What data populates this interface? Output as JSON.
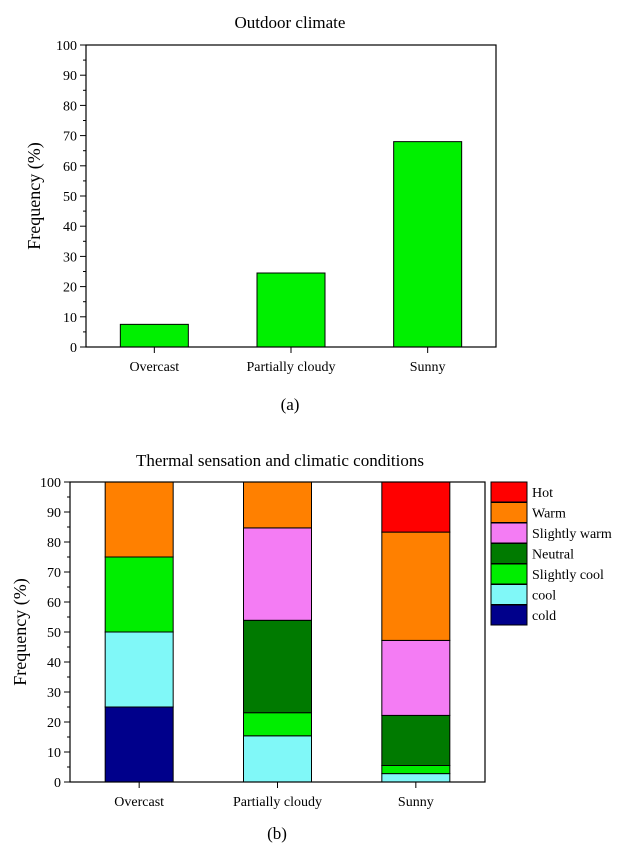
{
  "chart_data": [
    {
      "type": "bar",
      "title": "Outdoor climate",
      "ylabel": "Frequency (%)",
      "xlabel": "",
      "ylim": [
        0,
        100
      ],
      "yticks": [
        "0",
        "10",
        "20",
        "30",
        "40",
        "50",
        "60",
        "70",
        "80",
        "90",
        "100"
      ],
      "categories": [
        "Overcast",
        "Partially cloudy",
        "Sunny"
      ],
      "values": [
        7.5,
        24.5,
        68
      ],
      "color": "#00f000",
      "panel_label": "(a)",
      "grid": false
    },
    {
      "type": "bar",
      "stacked": true,
      "title": "Thermal sensation and climatic conditions",
      "ylabel": "Frequency (%)",
      "xlabel": "",
      "ylim": [
        0,
        100
      ],
      "yticks": [
        "0",
        "10",
        "20",
        "30",
        "40",
        "50",
        "60",
        "70",
        "80",
        "90",
        "100"
      ],
      "categories": [
        "Overcast",
        "Partially cloudy",
        "Sunny"
      ],
      "series": [
        {
          "name": "cold",
          "color": "#00008b",
          "values": [
            25,
            0,
            0
          ]
        },
        {
          "name": "cool",
          "color": "#80f8f8",
          "values": [
            25,
            15.4,
            2.8
          ]
        },
        {
          "name": "Slightly cool",
          "color": "#00ee00",
          "values": [
            25,
            7.7,
            2.7
          ]
        },
        {
          "name": "Neutral",
          "color": "#007a00",
          "values": [
            0,
            30.8,
            16.7
          ]
        },
        {
          "name": "Slightly warm",
          "color": "#f47cf4",
          "values": [
            0,
            30.8,
            25
          ]
        },
        {
          "name": "Warm",
          "color": "#ff8000",
          "values": [
            25,
            15.3,
            36.1
          ]
        },
        {
          "name": "Hot",
          "color": "#ff0000",
          "values": [
            0,
            0,
            16.7
          ]
        }
      ],
      "legend": "right",
      "panel_label": "(b)",
      "grid": false
    }
  ]
}
